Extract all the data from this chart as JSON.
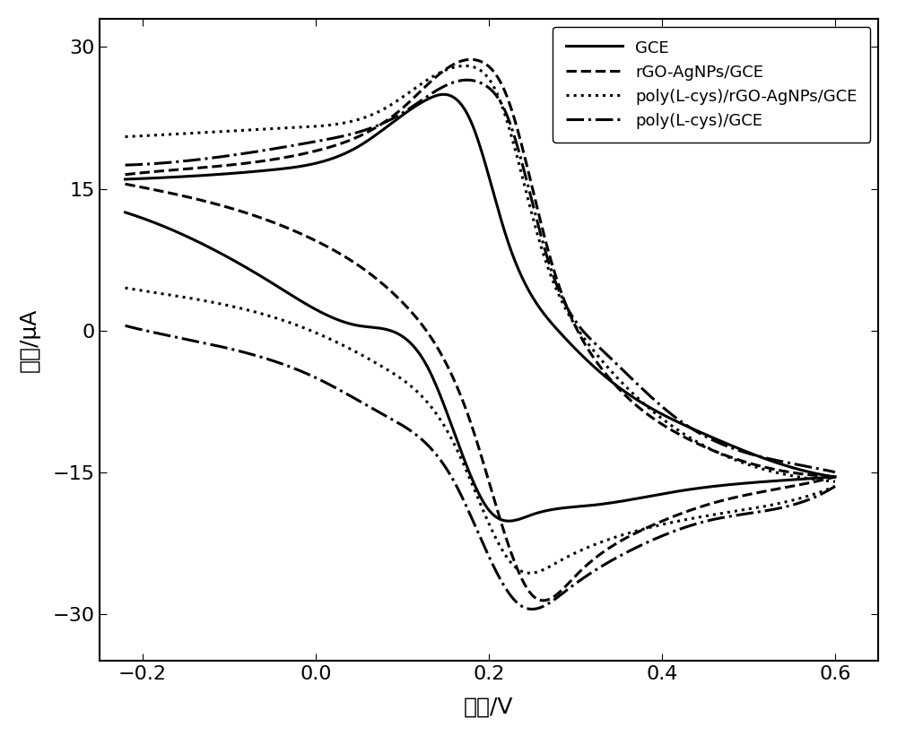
{
  "title": "",
  "xlabel": "电位/V",
  "ylabel": "电流/μA",
  "xlim": [
    -0.25,
    0.65
  ],
  "ylim": [
    -35,
    33
  ],
  "xticks": [
    -0.2,
    0.0,
    0.2,
    0.4,
    0.6
  ],
  "yticks": [
    -30,
    -15,
    0,
    15,
    30
  ],
  "legend_labels": [
    "GCE",
    "rGO-AgNPs/GCE",
    "poly(L-cys)/rGO-AgNPs/GCE",
    "poly(L-cys)/GCE"
  ],
  "linestyles": [
    "-",
    "--",
    ":",
    "-."
  ],
  "linewidths": [
    2.2,
    2.2,
    2.2,
    2.2
  ],
  "font_size_labels": 18,
  "font_size_ticks": 16,
  "font_size_legend": 13,
  "GCE_upper": {
    "x": [
      -0.22,
      -0.15,
      -0.05,
      0.05,
      0.13,
      0.18,
      0.22,
      0.28,
      0.35,
      0.45,
      0.55,
      0.6
    ],
    "y": [
      16.0,
      16.3,
      17.0,
      19.5,
      24.5,
      22.0,
      10.0,
      0.0,
      -6.0,
      -11.0,
      -14.5,
      -15.5
    ]
  },
  "GCE_lower": {
    "x": [
      -0.22,
      -0.15,
      -0.05,
      0.05,
      0.13,
      0.2,
      0.25,
      0.32,
      0.42,
      0.52,
      0.6
    ],
    "y": [
      12.5,
      10.0,
      5.0,
      0.5,
      -4.0,
      -19.0,
      -19.5,
      -18.5,
      -17.0,
      -16.0,
      -15.5
    ]
  },
  "rGO_upper": {
    "x": [
      -0.22,
      -0.1,
      0.0,
      0.1,
      0.19,
      0.22,
      0.27,
      0.33,
      0.42,
      0.52,
      0.6
    ],
    "y": [
      16.5,
      17.5,
      19.0,
      23.5,
      28.5,
      25.0,
      8.0,
      -4.0,
      -11.0,
      -14.5,
      -15.5
    ]
  },
  "rGO_lower": {
    "x": [
      -0.22,
      -0.12,
      0.0,
      0.1,
      0.18,
      0.25,
      0.3,
      0.38,
      0.47,
      0.55,
      0.6
    ],
    "y": [
      15.5,
      13.5,
      9.5,
      3.0,
      -10.0,
      -28.0,
      -26.0,
      -21.0,
      -18.0,
      -16.5,
      -15.5
    ]
  },
  "poly_rGO_upper": {
    "x": [
      -0.22,
      -0.12,
      -0.02,
      0.08,
      0.175,
      0.21,
      0.26,
      0.32,
      0.41,
      0.51,
      0.6
    ],
    "y": [
      20.5,
      21.0,
      21.5,
      23.5,
      28.0,
      25.0,
      9.0,
      -2.0,
      -10.0,
      -14.5,
      -16.0
    ]
  },
  "poly_rGO_lower": {
    "x": [
      -0.22,
      -0.12,
      -0.02,
      0.08,
      0.16,
      0.23,
      0.28,
      0.36,
      0.46,
      0.55,
      0.6
    ],
    "y": [
      4.5,
      3.0,
      0.5,
      -4.0,
      -12.0,
      -25.0,
      -24.5,
      -21.5,
      -19.5,
      -18.0,
      -16.5
    ]
  },
  "poly_GCE_upper": {
    "x": [
      -0.22,
      -0.1,
      0.0,
      0.1,
      0.195,
      0.22,
      0.27,
      0.33,
      0.42,
      0.52,
      0.6
    ],
    "y": [
      17.5,
      18.5,
      20.0,
      23.0,
      26.0,
      23.0,
      7.0,
      -2.0,
      -9.5,
      -13.5,
      -15.0
    ]
  },
  "poly_GCE_lower": {
    "x": [
      -0.22,
      -0.12,
      0.0,
      0.08,
      0.16,
      0.235,
      0.29,
      0.37,
      0.46,
      0.55,
      0.6
    ],
    "y": [
      0.5,
      -1.5,
      -5.0,
      -9.0,
      -16.0,
      -29.0,
      -27.5,
      -23.0,
      -20.0,
      -18.5,
      -16.5
    ]
  }
}
